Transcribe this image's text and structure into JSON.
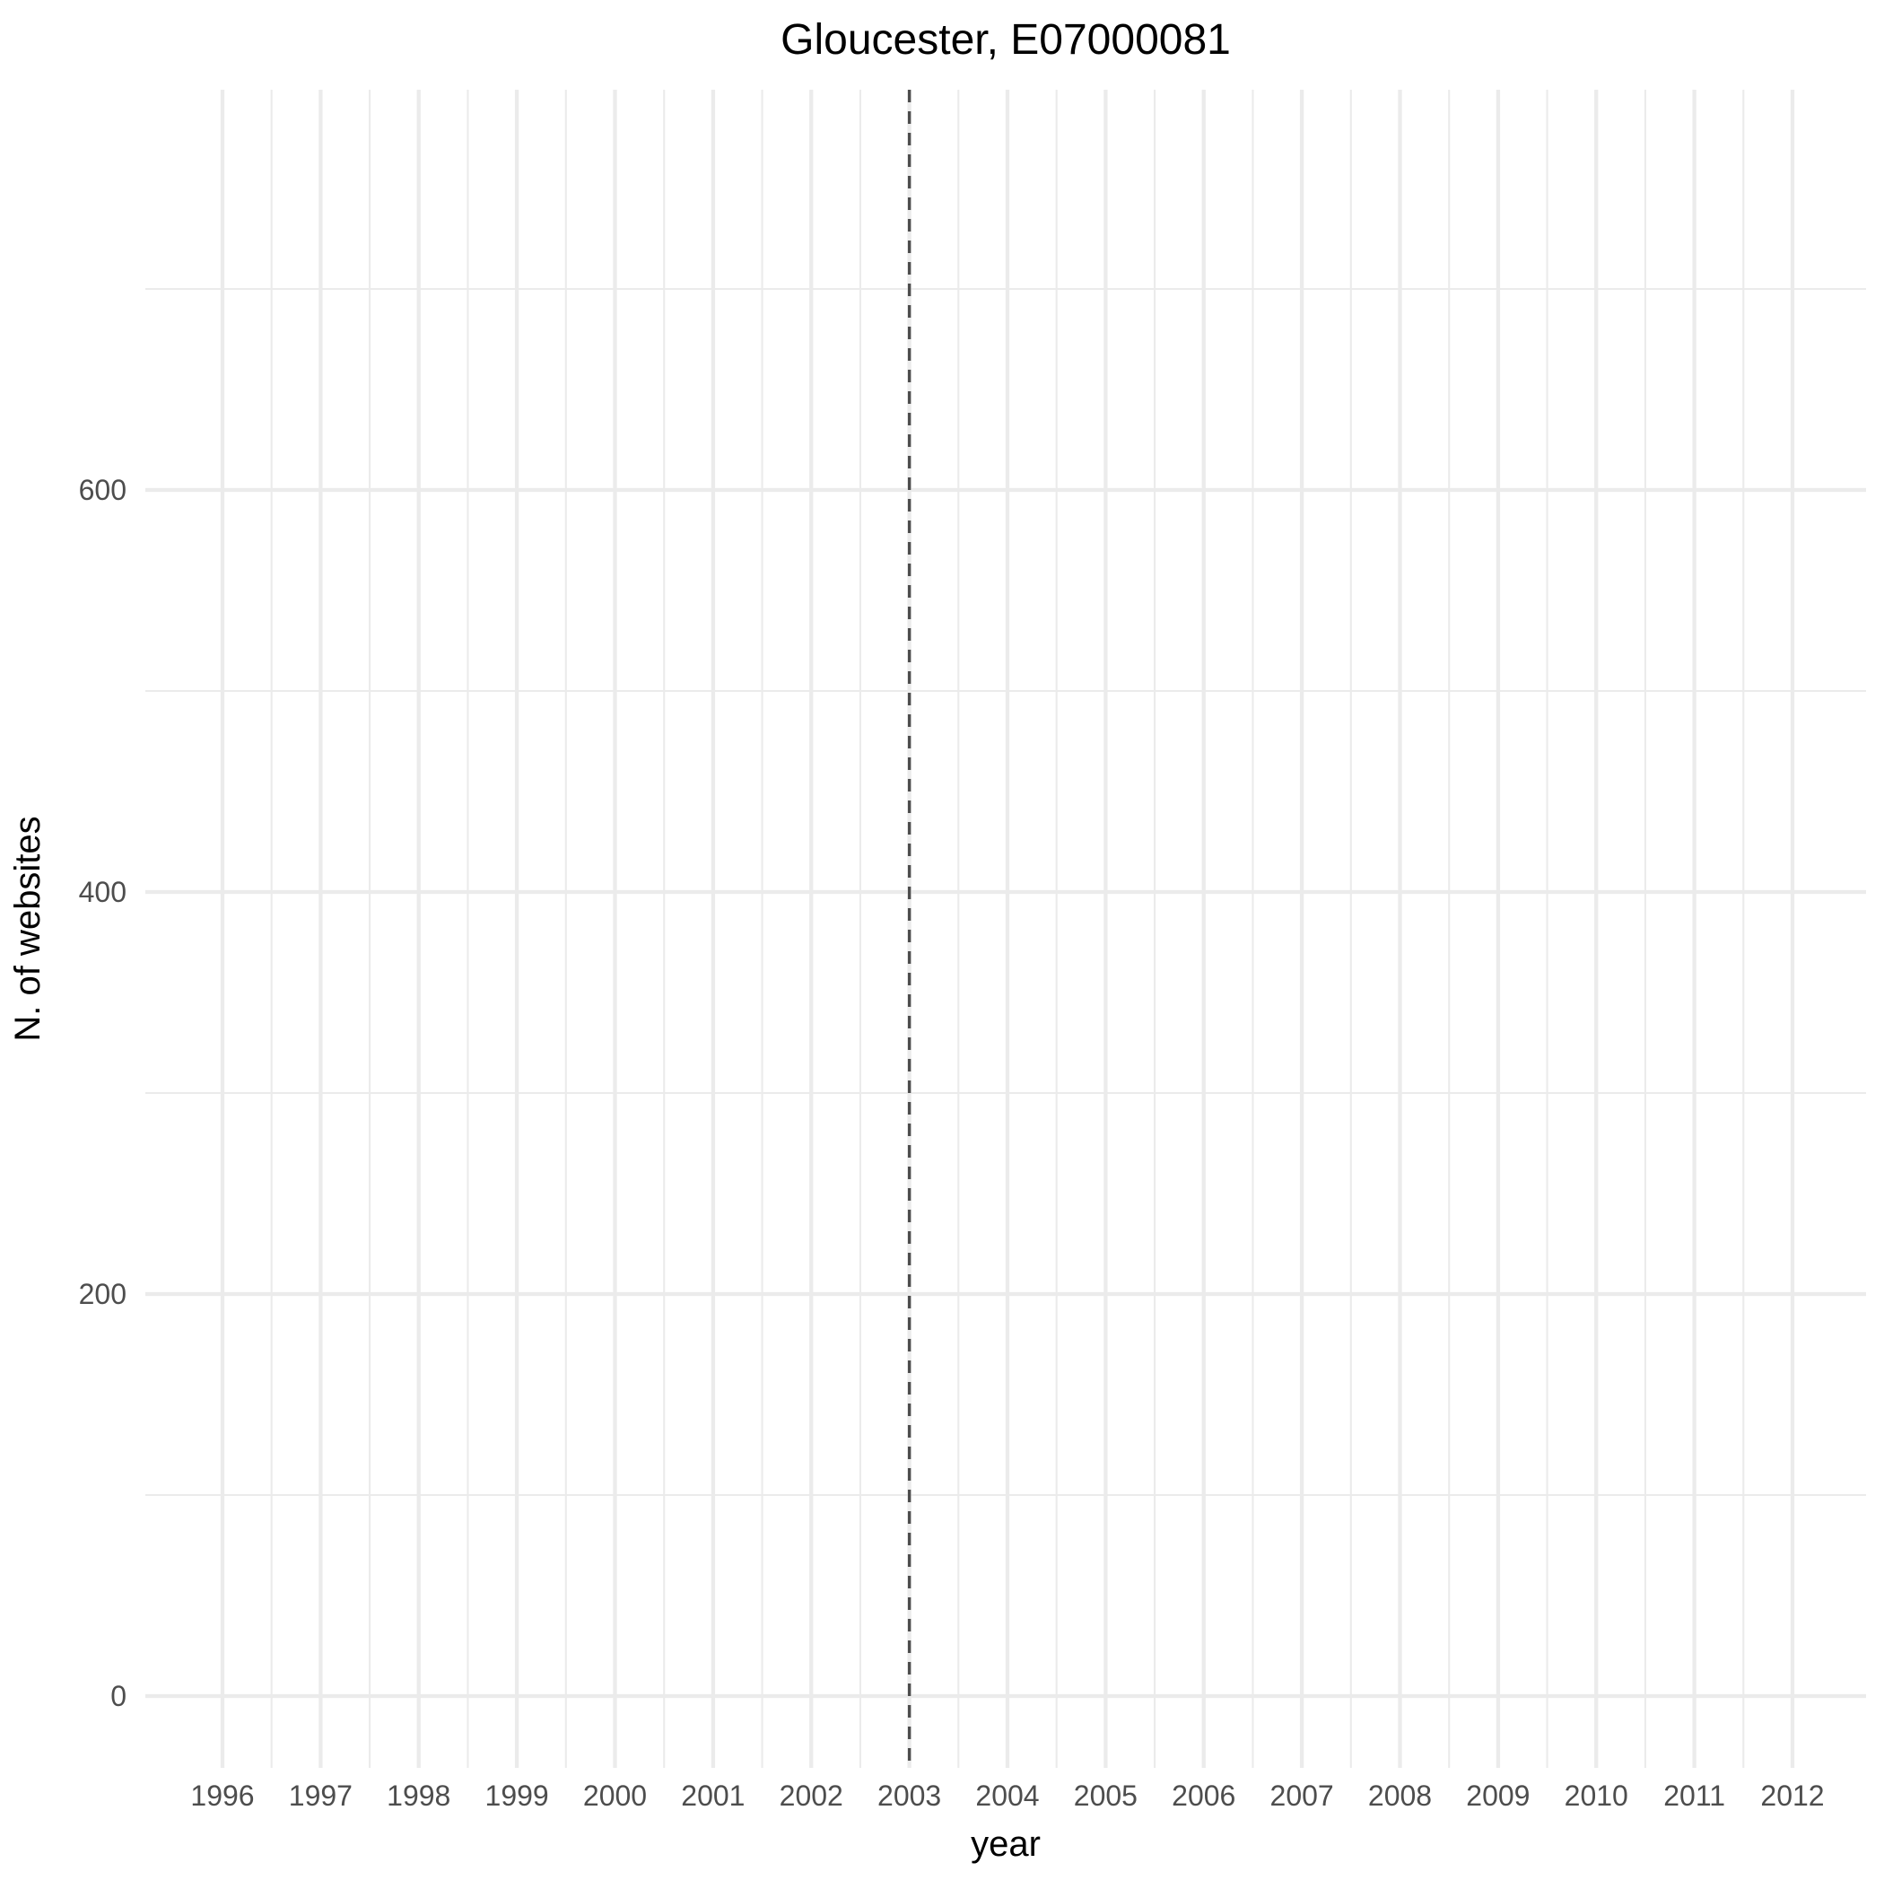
{
  "chart_data": {
    "type": "line",
    "title": "Gloucester, E07000081",
    "xlabel": "year",
    "ylabel": "N. of websites",
    "x_ticks": [
      1996,
      1997,
      1998,
      1999,
      2000,
      2001,
      2002,
      2003,
      2004,
      2005,
      2006,
      2007,
      2008,
      2009,
      2010,
      2011,
      2012
    ],
    "y_ticks": [
      0,
      200,
      400,
      600
    ],
    "xlim": [
      1996,
      2012
    ],
    "ylim": [
      0,
      700
    ],
    "grid": true,
    "series": [],
    "annotations": [
      {
        "type": "vline",
        "x": 2003,
        "linestyle": "dashed",
        "color": "#4d4d4d"
      }
    ]
  }
}
